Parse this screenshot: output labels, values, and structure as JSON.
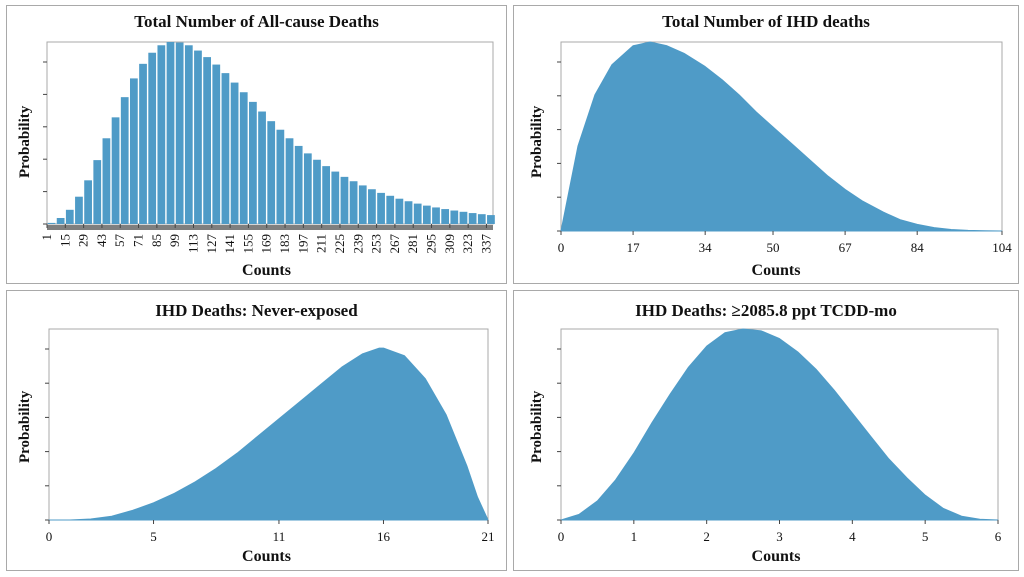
{
  "colors": {
    "fill": "#4f9bc7",
    "bar_fill": "#4f9bc7",
    "frame": "#a9a9a9",
    "axis": "#444444",
    "rug": "#7f7f7f"
  },
  "chart_data": [
    {
      "type": "bar",
      "title": "Total Number  of All-cause Deaths",
      "xlabel": "Counts",
      "ylabel": "Probability",
      "xlim": [
        1,
        342
      ],
      "ylim": [
        0,
        1
      ],
      "tick_labels": [
        "1",
        "15",
        "29",
        "43",
        "57",
        "71",
        "85",
        "99",
        "113",
        "127",
        "141",
        "155",
        "169",
        "183",
        "197",
        "211",
        "225",
        "239",
        "253",
        "267",
        "281",
        "295",
        "309",
        "323",
        "337"
      ],
      "tick_values": [
        1,
        15,
        29,
        43,
        57,
        71,
        85,
        99,
        113,
        127,
        141,
        155,
        169,
        183,
        197,
        211,
        225,
        239,
        253,
        267,
        281,
        295,
        309,
        323,
        337
      ],
      "bar_width": 7,
      "bars_x": [
        1,
        8,
        15,
        22,
        29,
        36,
        43,
        50,
        57,
        64,
        71,
        78,
        85,
        92,
        99,
        106,
        113,
        120,
        127,
        134,
        141,
        148,
        155,
        162,
        169,
        176,
        183,
        190,
        197,
        204,
        211,
        218,
        225,
        232,
        239,
        246,
        253,
        260,
        267,
        274,
        281,
        288,
        295,
        302,
        309,
        316,
        323,
        330,
        337
      ],
      "values": [
        0.006,
        0.033,
        0.078,
        0.15,
        0.24,
        0.351,
        0.471,
        0.586,
        0.697,
        0.8,
        0.88,
        0.941,
        0.982,
        1.0,
        0.997,
        0.982,
        0.953,
        0.917,
        0.876,
        0.829,
        0.777,
        0.724,
        0.671,
        0.618,
        0.565,
        0.518,
        0.471,
        0.429,
        0.388,
        0.353,
        0.318,
        0.288,
        0.259,
        0.235,
        0.212,
        0.191,
        0.171,
        0.155,
        0.139,
        0.125,
        0.112,
        0.101,
        0.091,
        0.082,
        0.074,
        0.067,
        0.06,
        0.054,
        0.049
      ]
    },
    {
      "type": "area",
      "title": "Total Number  of IHD deaths",
      "xlabel": "Counts",
      "ylabel": "Probability",
      "xlim": [
        0,
        104
      ],
      "ylim": [
        0,
        1
      ],
      "tick_labels": [
        "0",
        "17",
        "34",
        "50",
        "67",
        "84",
        "104"
      ],
      "tick_values": [
        0,
        17,
        34,
        50,
        67,
        84,
        104
      ],
      "x": [
        0,
        4,
        8,
        12,
        17,
        21,
        25,
        29,
        34,
        38,
        42,
        46,
        50,
        55,
        59,
        63,
        67,
        71,
        76,
        80,
        84,
        88,
        92,
        96,
        100,
        104
      ],
      "values": [
        0.0,
        0.45,
        0.72,
        0.88,
        0.98,
        1.0,
        0.98,
        0.94,
        0.87,
        0.8,
        0.72,
        0.63,
        0.55,
        0.45,
        0.37,
        0.29,
        0.22,
        0.16,
        0.1,
        0.06,
        0.035,
        0.018,
        0.008,
        0.003,
        0.001,
        0.0
      ]
    },
    {
      "type": "area",
      "title": "IHD Deaths: Never-exposed",
      "xlabel": "Counts",
      "ylabel": "Probability",
      "xlim": [
        0,
        21
      ],
      "ylim": [
        0,
        1
      ],
      "tick_labels": [
        "0",
        "5",
        "11",
        "16",
        "21"
      ],
      "tick_values": [
        0,
        5,
        11,
        16,
        21
      ],
      "x": [
        0,
        1,
        2,
        3,
        4,
        5,
        6,
        7,
        8,
        9,
        10,
        11,
        12,
        13,
        14,
        15,
        15.8,
        16,
        17,
        18,
        19,
        20,
        20.5,
        21
      ],
      "values": [
        0.0,
        0.0,
        0.005,
        0.02,
        0.05,
        0.09,
        0.14,
        0.2,
        0.27,
        0.35,
        0.44,
        0.53,
        0.62,
        0.71,
        0.8,
        0.87,
        0.9,
        0.9,
        0.86,
        0.74,
        0.55,
        0.28,
        0.12,
        0.0
      ]
    },
    {
      "type": "area",
      "title": "IHD Deaths: ≥2085.8 ppt  TCDD-mo",
      "xlabel": "Counts",
      "ylabel": "Probability",
      "xlim": [
        0,
        6
      ],
      "ylim": [
        0,
        1
      ],
      "tick_labels": [
        "0",
        "1",
        "2",
        "3",
        "4",
        "5",
        "6"
      ],
      "tick_values": [
        0,
        1,
        2,
        3,
        4,
        5,
        6
      ],
      "x": [
        0,
        0.25,
        0.5,
        0.75,
        1,
        1.25,
        1.5,
        1.75,
        2,
        2.25,
        2.5,
        2.75,
        3,
        3.25,
        3.5,
        3.75,
        4,
        4.25,
        4.5,
        4.75,
        5,
        5.25,
        5.5,
        5.75,
        6
      ],
      "values": [
        0.0,
        0.03,
        0.1,
        0.21,
        0.35,
        0.51,
        0.66,
        0.8,
        0.91,
        0.98,
        1.0,
        0.99,
        0.95,
        0.88,
        0.79,
        0.68,
        0.56,
        0.44,
        0.32,
        0.22,
        0.13,
        0.06,
        0.02,
        0.004,
        0.0
      ]
    }
  ]
}
